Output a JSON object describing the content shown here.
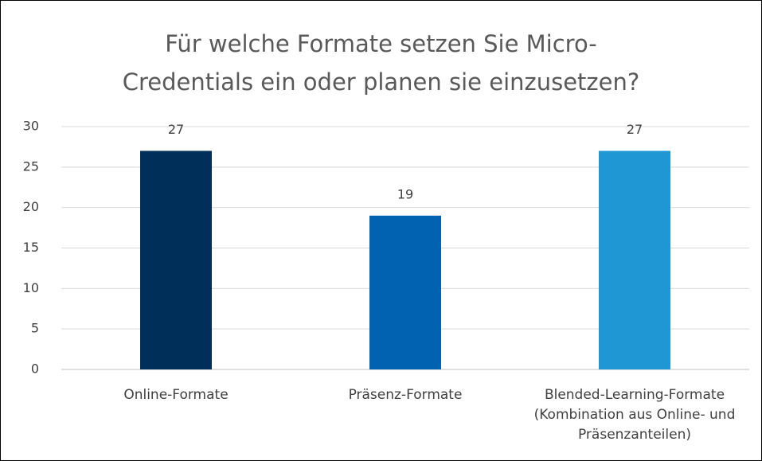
{
  "chart_data": {
    "type": "bar",
    "title": "Für welche Formate setzen Sie Micro-Credentials ein oder planen sie einzusetzen?",
    "categories": [
      "Online-Formate",
      "Präsenz-Formate",
      "Blended-Learning-Formate (Kombination aus Online- und Präsenzanteilen)"
    ],
    "values": [
      27,
      19,
      27
    ],
    "colors": [
      "#00305a",
      "#0062b0",
      "#1f97d4"
    ],
    "ylim": [
      0,
      30
    ],
    "yticks": [
      0,
      5,
      10,
      15,
      20,
      25,
      30
    ],
    "grid": true
  }
}
